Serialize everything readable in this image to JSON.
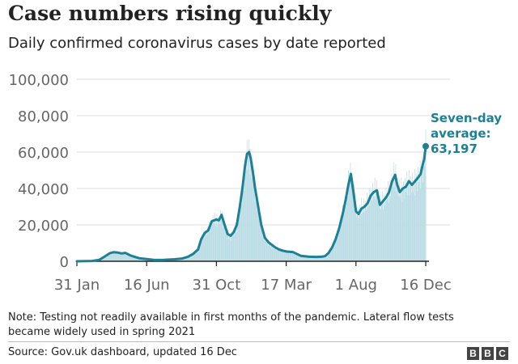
{
  "header": {
    "title": "Case numbers rising quickly",
    "subtitle": "Daily confirmed coronavirus cases by date reported"
  },
  "footer": {
    "note": "Note: Testing not readily available in first months of the pandemic. Lateral flow tests became widely used in spring 2021",
    "source": "Source: Gov.uk dashboard, updated 16 Dec",
    "logo": [
      "B",
      "B",
      "C"
    ]
  },
  "colors": {
    "line": "#1d8094",
    "bars": "#bcdde6",
    "grid": "#dddddd",
    "axis": "#222222",
    "ticks": "#666666"
  },
  "chart_data": {
    "type": "area",
    "title": "Case numbers rising quickly",
    "subtitle": "Daily confirmed coronavirus cases by date reported",
    "xlabel": "",
    "ylabel": "",
    "ylim": [
      0,
      100000
    ],
    "xlim": [
      "2020-01-31",
      "2021-12-16"
    ],
    "grid": true,
    "y_ticks": [
      0,
      20000,
      40000,
      60000,
      80000,
      100000
    ],
    "y_tick_labels": [
      "0",
      "20,000",
      "40,000",
      "60,000",
      "80,000",
      "100,000"
    ],
    "x_ticks": [
      "2020-01-31",
      "2020-06-16",
      "2020-10-31",
      "2021-03-17",
      "2021-08-01",
      "2021-12-16"
    ],
    "x_tick_labels": [
      "31 Jan",
      "16 Jun",
      "31 Oct",
      "17 Mar",
      "1 Aug",
      "16 Dec"
    ],
    "annotation": {
      "lines": [
        "Seven-day",
        "average:",
        "63,197"
      ],
      "date": "2021-12-16",
      "value": 63197
    },
    "series": [
      {
        "name": "Seven-day average",
        "style": "line",
        "x": [
          "2020-01-31",
          "2020-03-01",
          "2020-03-15",
          "2020-03-25",
          "2020-04-05",
          "2020-04-12",
          "2020-04-20",
          "2020-04-28",
          "2020-05-05",
          "2020-05-15",
          "2020-06-01",
          "2020-06-16",
          "2020-07-01",
          "2020-07-20",
          "2020-08-10",
          "2020-08-25",
          "2020-09-05",
          "2020-09-15",
          "2020-09-25",
          "2020-10-01",
          "2020-10-08",
          "2020-10-15",
          "2020-10-22",
          "2020-10-31",
          "2020-11-05",
          "2020-11-10",
          "2020-11-16",
          "2020-11-22",
          "2020-11-28",
          "2020-12-04",
          "2020-12-10",
          "2020-12-16",
          "2020-12-21",
          "2020-12-26",
          "2020-12-30",
          "2021-01-03",
          "2021-01-06",
          "2021-01-10",
          "2021-01-15",
          "2021-01-21",
          "2021-01-27",
          "2021-02-03",
          "2021-02-10",
          "2021-02-17",
          "2021-02-24",
          "2021-03-03",
          "2021-03-10",
          "2021-03-17",
          "2021-03-31",
          "2021-04-15",
          "2021-05-01",
          "2021-05-15",
          "2021-05-25",
          "2021-06-01",
          "2021-06-08",
          "2021-06-15",
          "2021-06-22",
          "2021-06-29",
          "2021-07-06",
          "2021-07-12",
          "2021-07-17",
          "2021-07-22",
          "2021-07-27",
          "2021-08-01",
          "2021-08-06",
          "2021-08-12",
          "2021-08-18",
          "2021-08-24",
          "2021-08-30",
          "2021-09-05",
          "2021-09-11",
          "2021-09-17",
          "2021-09-23",
          "2021-09-29",
          "2021-10-05",
          "2021-10-11",
          "2021-10-17",
          "2021-10-21",
          "2021-10-26",
          "2021-11-01",
          "2021-11-07",
          "2021-11-13",
          "2021-11-19",
          "2021-11-25",
          "2021-12-01",
          "2021-12-06",
          "2021-12-10",
          "2021-12-13",
          "2021-12-16"
        ],
        "values": [
          0,
          200,
          800,
          2500,
          4500,
          5000,
          4800,
          4300,
          4600,
          3200,
          1700,
          1200,
          700,
          800,
          1100,
          1500,
          2500,
          4000,
          6500,
          12000,
          15500,
          17000,
          22000,
          23000,
          22500,
          25500,
          20000,
          15000,
          14000,
          16000,
          20000,
          30000,
          40000,
          52000,
          59000,
          60000,
          57000,
          50000,
          40000,
          30000,
          20000,
          13000,
          10500,
          9000,
          7500,
          6500,
          5800,
          5400,
          5000,
          3000,
          2500,
          2400,
          2500,
          2800,
          4500,
          7500,
          12000,
          18000,
          26000,
          34000,
          42000,
          48000,
          38000,
          27500,
          26000,
          29000,
          30000,
          32000,
          36000,
          38000,
          39000,
          31000,
          33000,
          35000,
          38000,
          44000,
          47500,
          42000,
          38000,
          40000,
          41000,
          44000,
          42000,
          44000,
          46000,
          48000,
          53000,
          56000,
          63197
        ]
      }
    ]
  }
}
